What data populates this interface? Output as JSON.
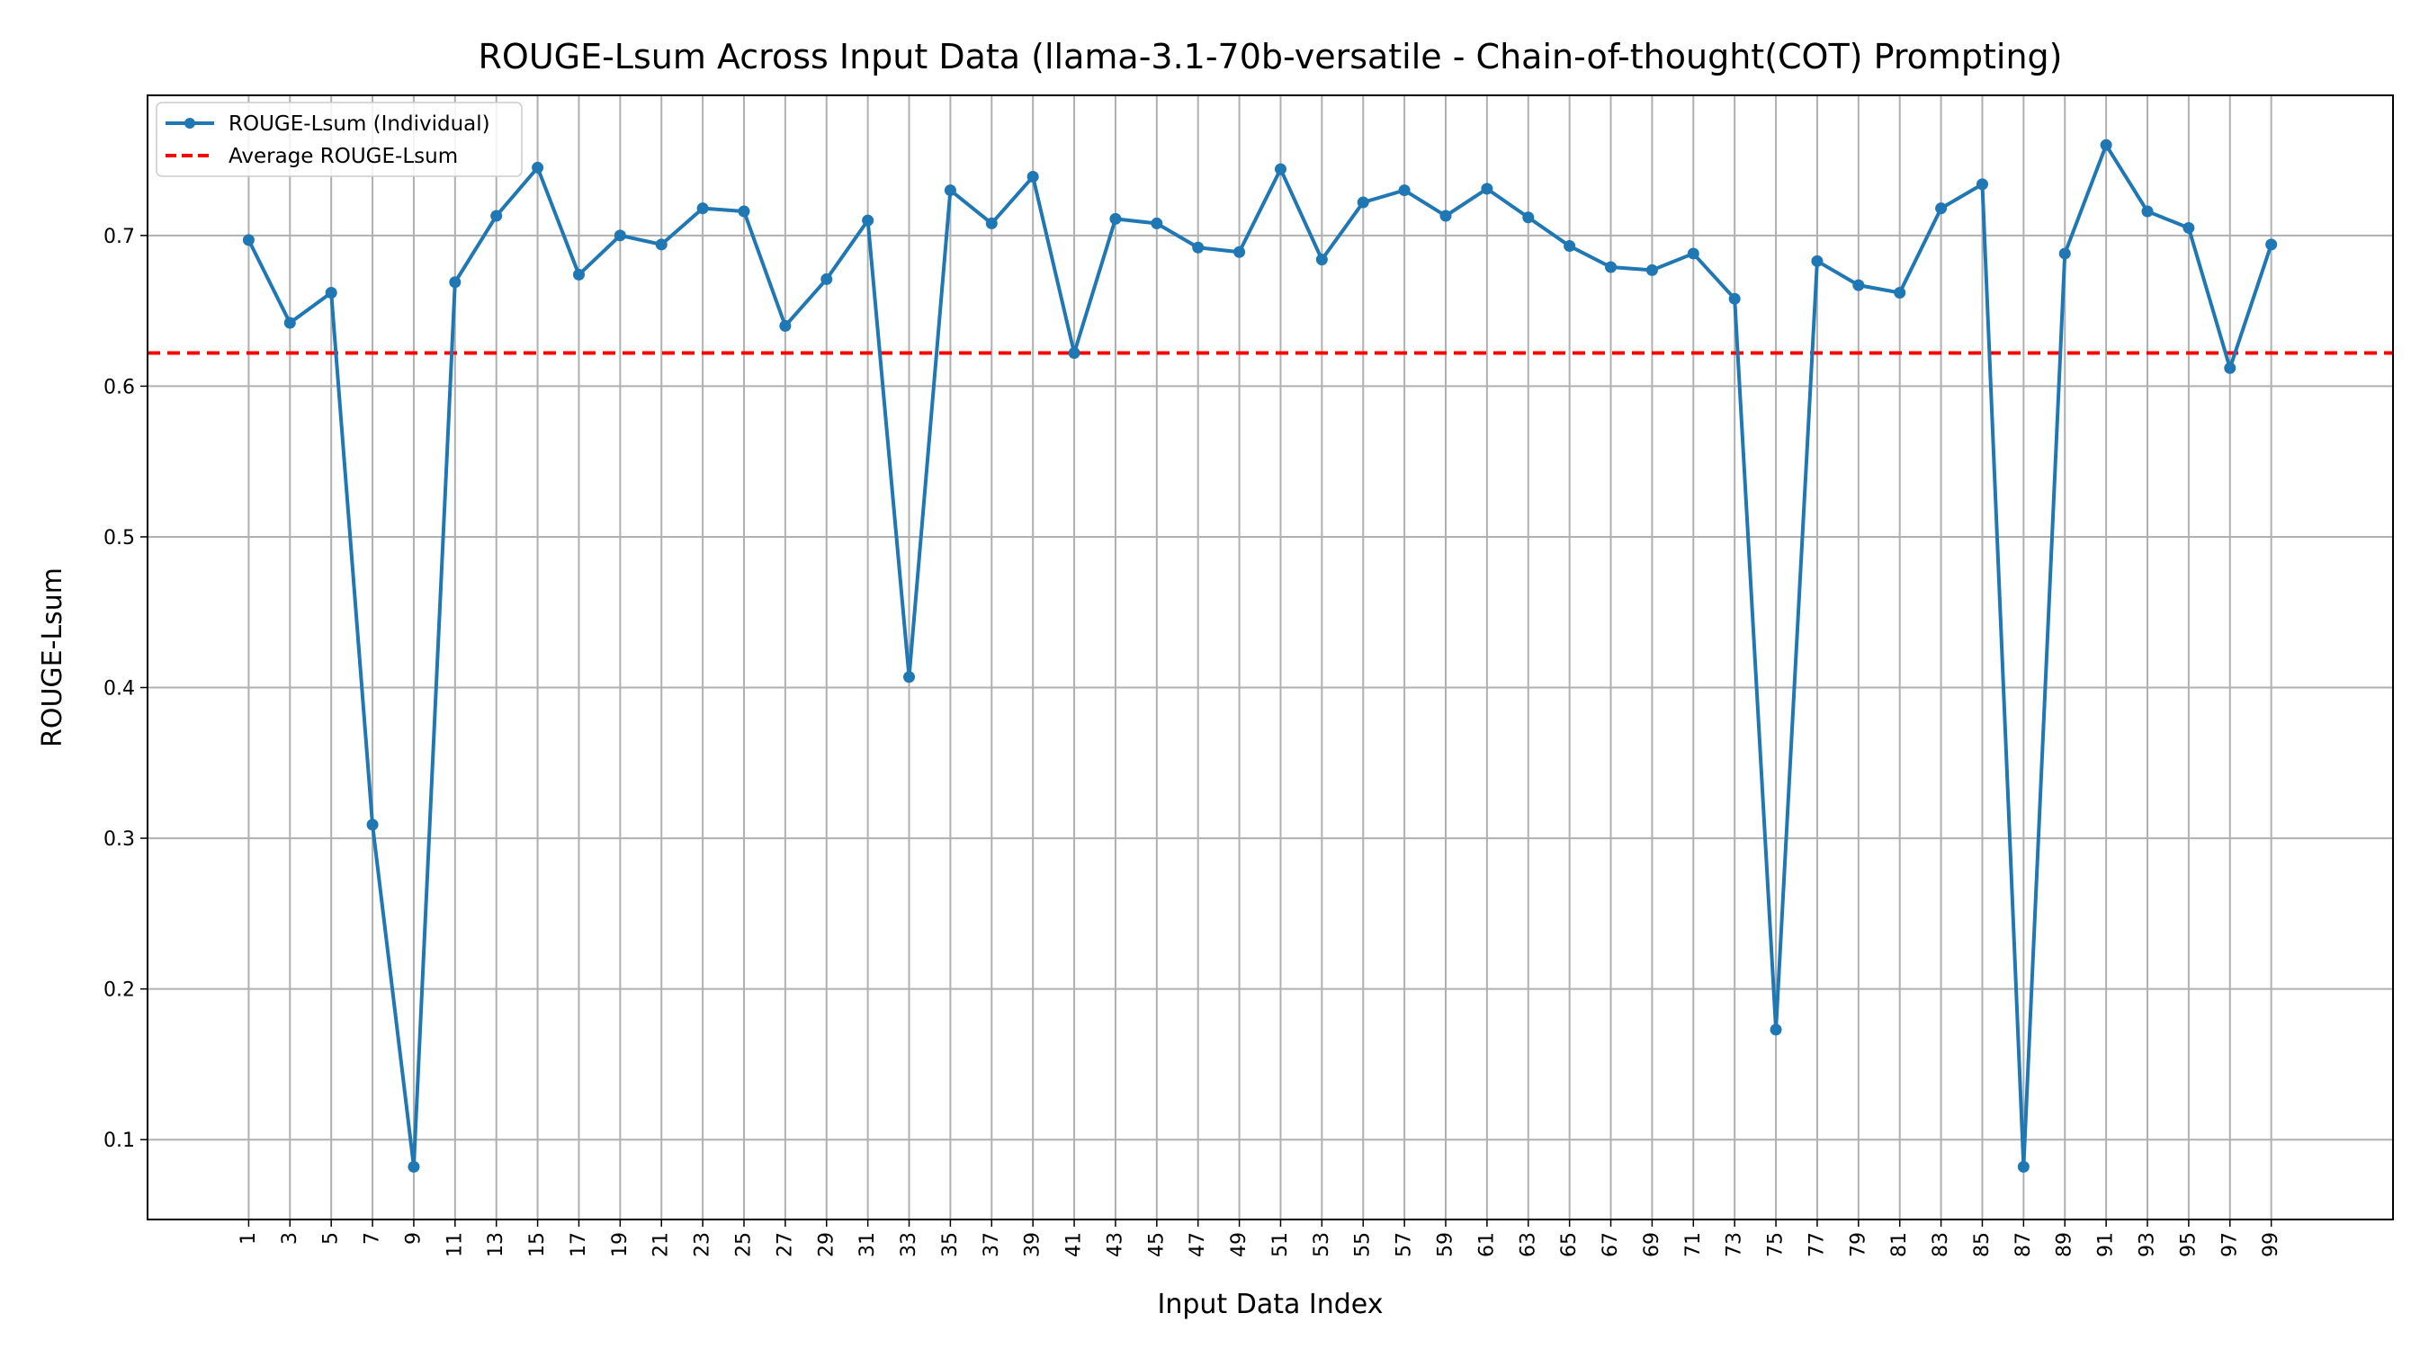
{
  "chart_data": {
    "type": "line",
    "title": "ROUGE-Lsum Across Input Data (llama-3.1-70b-versatile - Chain-of-thought(COT) Prompting)",
    "xlabel": "Input Data Index",
    "ylabel": "ROUGE-Lsum",
    "x": [
      1,
      3,
      5,
      7,
      9,
      11,
      13,
      15,
      17,
      19,
      21,
      23,
      25,
      27,
      29,
      31,
      33,
      35,
      37,
      39,
      41,
      43,
      45,
      47,
      49,
      51,
      53,
      55,
      57,
      59,
      61,
      63,
      65,
      67,
      69,
      71,
      73,
      75,
      77,
      79,
      81,
      83,
      85,
      87,
      89,
      91,
      93,
      95,
      97,
      99
    ],
    "series": [
      {
        "name": "ROUGE-Lsum (Individual)",
        "color": "#1f77b4",
        "values": [
          0.697,
          0.642,
          0.662,
          0.309,
          0.082,
          0.669,
          0.713,
          0.745,
          0.674,
          0.7,
          0.694,
          0.718,
          0.716,
          0.64,
          0.671,
          0.71,
          0.407,
          0.73,
          0.708,
          0.739,
          0.622,
          0.711,
          0.708,
          0.692,
          0.689,
          0.744,
          0.684,
          0.722,
          0.73,
          0.713,
          0.731,
          0.712,
          0.693,
          0.679,
          0.677,
          0.688,
          0.658,
          0.173,
          0.683,
          0.667,
          0.662,
          0.718,
          0.734,
          0.082,
          0.688,
          0.76,
          0.716,
          0.705,
          0.612,
          0.694
        ]
      }
    ],
    "average": {
      "name": "Average ROUGE-Lsum",
      "value": 0.622,
      "color": "#ff0000"
    },
    "xticks": [
      1,
      3,
      5,
      7,
      9,
      11,
      13,
      15,
      17,
      19,
      21,
      23,
      25,
      27,
      29,
      31,
      33,
      35,
      37,
      39,
      41,
      43,
      45,
      47,
      49,
      51,
      53,
      55,
      57,
      59,
      61,
      63,
      65,
      67,
      69,
      71,
      73,
      75,
      77,
      79,
      81,
      83,
      85,
      87,
      89,
      91,
      93,
      95,
      97,
      99
    ],
    "yticks": [
      0.1,
      0.2,
      0.3,
      0.4,
      0.5,
      0.6,
      0.7
    ],
    "xlim": [
      -3.9,
      104.9
    ],
    "ylim": [
      0.047,
      0.793
    ],
    "grid": true,
    "legend_position": "top-left"
  }
}
